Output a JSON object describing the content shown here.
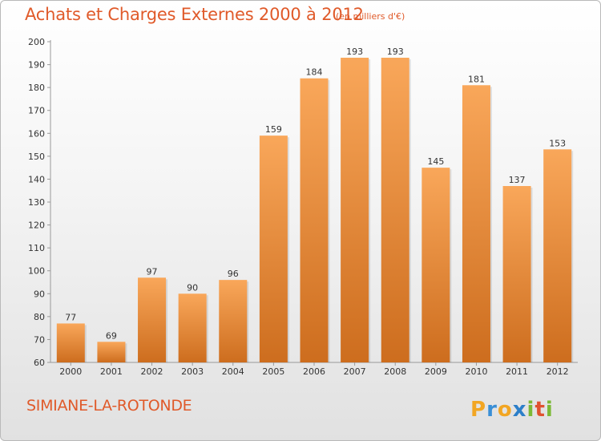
{
  "header": {
    "title": "Achats et Charges Externes 2000 à 2012",
    "subtitle": "(en milliers d'€)"
  },
  "footer": {
    "commune": "SIMIANE-LA-ROTONDE",
    "logo_text": "Proxiti"
  },
  "colors": {
    "accent": "#e05a2a",
    "bar_light": "#f9a75a",
    "bar_dark": "#cd6d1e"
  },
  "chart_data": {
    "type": "bar",
    "title": "Achats et Charges Externes 2000 à 2012",
    "subtitle": "(en milliers d'€)",
    "categories": [
      "2000",
      "2001",
      "2002",
      "2003",
      "2004",
      "2005",
      "2006",
      "2007",
      "2008",
      "2009",
      "2010",
      "2011",
      "2012"
    ],
    "values": [
      77,
      69,
      97,
      90,
      96,
      159,
      184,
      193,
      193,
      145,
      181,
      137,
      153
    ],
    "ylim": [
      60,
      200
    ],
    "yticks": [
      60,
      70,
      80,
      90,
      100,
      110,
      120,
      130,
      140,
      150,
      160,
      170,
      180,
      190,
      200
    ],
    "grid": false,
    "data_labels": true
  }
}
